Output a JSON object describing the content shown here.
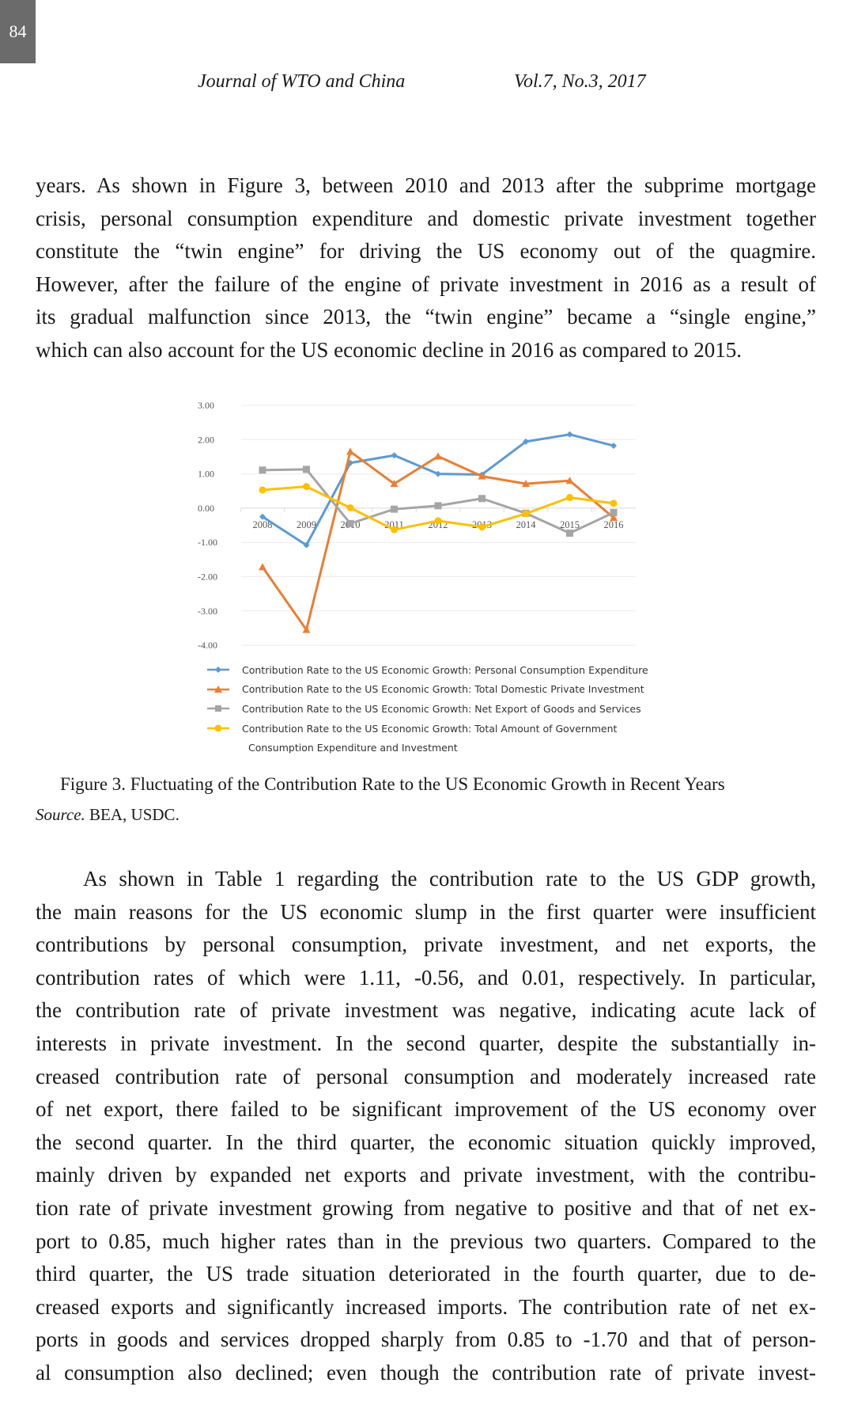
{
  "page_number": "84",
  "header": {
    "journal": "Journal of WTO and China",
    "volume": "Vol.7, No.3, 2017"
  },
  "paragraph1": [
    "years. As shown in Figure 3, between 2010 and 2013 after the subprime mortgage",
    "crisis, personal consumption expenditure and domestic private investment together",
    "constitute the “twin engine” for driving the US economy out of the quagmire.",
    "However, after the failure of the engine of private investment in 2016 as a result of",
    "its gradual malfunction since 2013, the “twin engine” became a “single engine,”",
    "which can also account for the US economic decline in 2016 as compared to 2015."
  ],
  "chart_data": {
    "type": "line",
    "x": [
      "2008",
      "2009",
      "2010",
      "2011",
      "2012",
      "2013",
      "2014",
      "2015",
      "2016"
    ],
    "ylim": [
      -4,
      3
    ],
    "yticks": [
      "3.00",
      "2.00",
      "1.00",
      "0.00",
      "-1.00",
      "-2.00",
      "-3.00",
      "-4.00"
    ],
    "grid": true,
    "legend_placement": "bottom",
    "series": [
      {
        "name": "Contribution Rate to the US Economic Growth: Personal Consumption Expenditure",
        "color": "#5b9bd5",
        "marker": "diamond",
        "values": [
          -0.25,
          -1.08,
          1.32,
          1.54,
          1.0,
          0.98,
          1.94,
          2.15,
          1.82
        ]
      },
      {
        "name": "Contribution Rate to the US Economic Growth: Total Domestic Private Investment",
        "color": "#ed7d31",
        "marker": "triangle",
        "values": [
          -1.72,
          -3.55,
          1.65,
          0.71,
          1.51,
          0.93,
          0.71,
          0.8,
          -0.28
        ]
      },
      {
        "name": "Contribution Rate to the US Economic Growth: Net Export of Goods and Services",
        "color": "#a5a5a5",
        "marker": "square",
        "values": [
          1.11,
          1.13,
          -0.45,
          -0.03,
          0.07,
          0.28,
          -0.15,
          -0.73,
          -0.13
        ]
      },
      {
        "name": "Contribution Rate to the US Economic Growth: Total Amount of Government",
        "name_cont": "Consumption Expenditure and Investment",
        "color": "#ffc000",
        "marker": "circle",
        "values": [
          0.53,
          0.63,
          0.01,
          -0.63,
          -0.37,
          -0.55,
          -0.16,
          0.31,
          0.14
        ]
      }
    ]
  },
  "caption": "Figure 3. Fluctuating of the Contribution Rate to the US Economic Growth in Recent Years",
  "source": {
    "label": "Source.",
    "text": " BEA, USDC."
  },
  "paragraph2": [
    "As shown in Table 1 regarding the contribution rate to the US GDP growth,",
    "the main reasons for the US economic slump in the first quarter were insufficient",
    "contributions by personal consumption, private investment, and net exports, the",
    "contribution rates of which were 1.11, -0.56, and 0.01, respectively. In particular,",
    "the contribution rate of private investment was negative, indicating acute lack of",
    "interests in private investment. In the second quarter, despite the substantially in-",
    "creased contribution rate of personal consumption and moderately increased rate",
    "of net export, there failed to be significant improvement of the US economy over",
    "the second quarter. In the third quarter, the economic situation quickly improved,",
    "mainly driven by expanded net exports and private investment, with the contribu-",
    "tion rate of private investment growing from negative to positive and that of net ex-",
    "port to 0.85, much higher rates than in the previous two quarters. Compared to the",
    "third quarter, the US trade situation deteriorated in the fourth quarter, due to de-",
    "creased exports and significantly increased imports. The contribution rate of net ex-",
    "ports in goods and services dropped sharply from 0.85 to -1.70 and that of person-",
    "al consumption also declined; even though the contribution rate of private invest-"
  ]
}
